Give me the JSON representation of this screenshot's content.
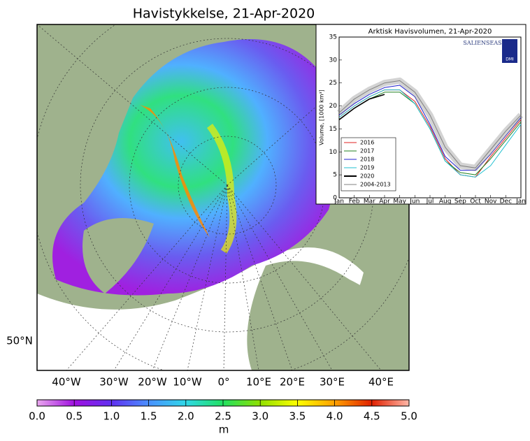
{
  "map": {
    "title": "Havistykkelse, 21-Apr-2020",
    "lon_labels": [
      "40°W",
      "30°W",
      "20°W",
      "10°W",
      "0°",
      "10°E",
      "20°E",
      "30°E",
      "40°E"
    ],
    "lat_labels": [
      "50°N"
    ],
    "colorbar": {
      "range": [
        0,
        5
      ],
      "label": "m",
      "ticks": [
        {
          "value": 0,
          "label": "0.0"
        },
        {
          "value": 0.5,
          "label": "0.5"
        },
        {
          "value": 1,
          "label": "1.0"
        },
        {
          "value": 1.5,
          "label": "1.5"
        },
        {
          "value": 2,
          "label": "2.0"
        },
        {
          "value": 2.5,
          "label": "2.5"
        },
        {
          "value": 3,
          "label": "3.0"
        },
        {
          "value": 3.5,
          "label": "3.5"
        },
        {
          "value": 4,
          "label": "4.0"
        },
        {
          "value": 4.5,
          "label": "4.5"
        },
        {
          "value": 5,
          "label": "5.0"
        }
      ]
    }
  },
  "chart_data": {
    "type": "line",
    "title": "Arktisk Havisvolumen, 21-Apr-2020",
    "y_label": "Volume, [1000 km³]",
    "logos": [
      "SALIENSEAS",
      "DMI"
    ],
    "categories": [
      "Jan",
      "Feb",
      "Mar",
      "Apr",
      "May",
      "Jun",
      "Jul",
      "Aug",
      "Sep",
      "Oct",
      "Nov",
      "Dec",
      "Jan"
    ],
    "ylim": [
      0,
      35
    ],
    "yticks": [
      0,
      5,
      10,
      15,
      20,
      25,
      30,
      35
    ],
    "series": [
      {
        "name": "2016",
        "color": "#e02020",
        "values": [
          17.5,
          20,
          22,
          23.5,
          23.5,
          21,
          15.5,
          8.5,
          5,
          4.5,
          9,
          13,
          17
        ]
      },
      {
        "name": "2017",
        "color": "#208020",
        "values": [
          17,
          19.5,
          21.5,
          23,
          23,
          20.5,
          15,
          8,
          5.5,
          5,
          8.5,
          12.5,
          16.5
        ]
      },
      {
        "name": "2018",
        "color": "#2020d0",
        "values": [
          18,
          20.5,
          22.5,
          24,
          24.5,
          22,
          16,
          9,
          6,
          6,
          9.5,
          13.5,
          17.5
        ]
      },
      {
        "name": "2019",
        "color": "#20c0d0",
        "values": [
          17.5,
          20,
          22,
          23.5,
          23.5,
          20.5,
          15,
          8,
          5,
          4.5,
          7,
          11.5,
          16
        ]
      },
      {
        "name": "2020",
        "color": "#000000",
        "values": [
          17,
          19.5,
          21.5,
          22.5,
          null,
          null,
          null,
          null,
          null,
          null,
          null,
          null,
          null
        ]
      },
      {
        "name": "2004-2013",
        "color": "#808080",
        "values": [
          18.5,
          21.5,
          23.5,
          25,
          25.5,
          23,
          18,
          11,
          7,
          6.5,
          10.5,
          14.5,
          18
        ]
      }
    ]
  }
}
